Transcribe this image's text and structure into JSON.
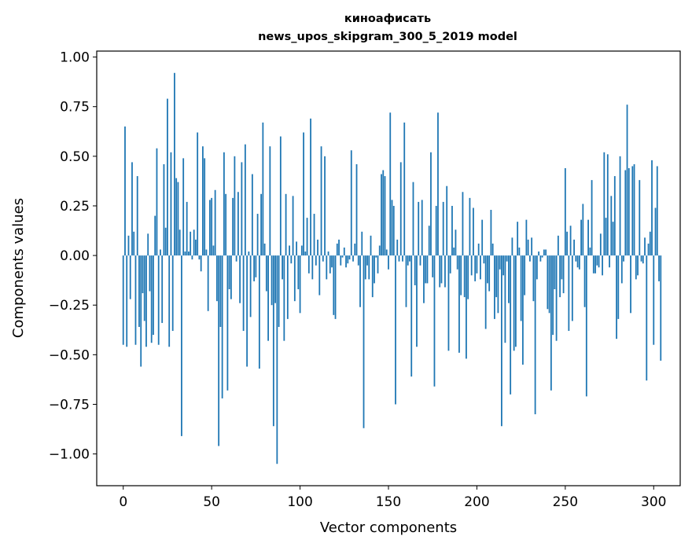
{
  "chart_data": {
    "type": "bar",
    "title_line1": "киноафисать",
    "title_line2": "news_upos_skipgram_300_5_2019 model",
    "xlabel": "Vector components",
    "ylabel": "Components values",
    "xlim": [
      -15,
      315
    ],
    "ylim": [
      -1.16,
      1.03
    ],
    "xticks": [
      0,
      50,
      100,
      150,
      200,
      250,
      300
    ],
    "yticks": [
      1.0,
      0.75,
      0.5,
      0.25,
      0.0,
      -0.25,
      -0.5,
      -0.75,
      -1.0
    ],
    "ytick_labels": [
      "1.00",
      "0.75",
      "0.50",
      "0.25",
      "0.00",
      "−0.25",
      "−0.50",
      "−0.75",
      "−1.00"
    ],
    "bar_color": "#1f77b4",
    "grid": false,
    "values": [
      -0.45,
      0.65,
      -0.46,
      0.1,
      -0.22,
      0.47,
      0.12,
      -0.45,
      0.4,
      -0.36,
      -0.56,
      -0.19,
      -0.33,
      -0.46,
      0.11,
      -0.18,
      -0.44,
      -0.4,
      0.2,
      0.54,
      -0.45,
      0.03,
      -0.34,
      0.46,
      0.14,
      0.79,
      -0.46,
      0.52,
      -0.38,
      0.92,
      0.39,
      0.37,
      0.13,
      -0.91,
      0.49,
      0.02,
      0.27,
      0.02,
      0.12,
      -0.02,
      0.13,
      0.08,
      0.62,
      -0.02,
      -0.08,
      0.55,
      0.49,
      0.03,
      -0.28,
      0.28,
      0.29,
      0.05,
      0.33,
      -0.23,
      -0.96,
      -0.36,
      -0.72,
      0.52,
      0.31,
      -0.68,
      -0.17,
      -0.22,
      0.29,
      0.5,
      -0.03,
      0.32,
      -0.24,
      0.47,
      -0.38,
      0.56,
      -0.56,
      0.02,
      -0.31,
      0.41,
      -0.13,
      -0.11,
      0.21,
      -0.57,
      0.31,
      0.67,
      0.06,
      -0.18,
      -0.43,
      0.55,
      -0.25,
      -0.86,
      -0.24,
      -1.05,
      -0.36,
      0.6,
      -0.12,
      -0.43,
      0.31,
      -0.32,
      0.05,
      -0.04,
      0.3,
      -0.23,
      0.07,
      -0.17,
      -0.29,
      0.05,
      0.62,
      0.02,
      0.19,
      -0.09,
      0.69,
      -0.12,
      0.21,
      -0.05,
      0.08,
      -0.2,
      0.55,
      -0.03,
      0.5,
      -0.12,
      0.02,
      -0.09,
      -0.06,
      -0.3,
      -0.32,
      0.06,
      0.08,
      -0.05,
      -0.01,
      0.04,
      -0.06,
      -0.04,
      -0.02,
      0.53,
      -0.03,
      0.06,
      0.46,
      -0.05,
      -0.26,
      0.12,
      -0.87,
      -0.12,
      -0.05,
      -0.12,
      0.1,
      -0.21,
      -0.14,
      -0.01,
      -0.09,
      0.05,
      0.41,
      0.43,
      0.4,
      0.03,
      -0.07,
      0.72,
      0.28,
      0.25,
      -0.75,
      0.08,
      -0.03,
      0.47,
      -0.03,
      0.67,
      -0.26,
      -0.05,
      -0.03,
      -0.61,
      0.37,
      -0.15,
      -0.46,
      0.27,
      -0.05,
      0.28,
      -0.24,
      -0.14,
      -0.14,
      0.15,
      0.52,
      -0.11,
      -0.66,
      0.25,
      0.72,
      -0.16,
      -0.14,
      0.27,
      -0.16,
      0.35,
      -0.48,
      -0.09,
      0.25,
      0.04,
      0.13,
      -0.07,
      -0.49,
      -0.2,
      0.32,
      -0.21,
      -0.52,
      -0.22,
      0.29,
      -0.1,
      0.24,
      -0.13,
      -0.09,
      0.06,
      -0.12,
      0.18,
      -0.04,
      -0.37,
      -0.14,
      -0.18,
      0.23,
      0.06,
      -0.32,
      -0.21,
      -0.29,
      -0.07,
      -0.86,
      -0.1,
      -0.44,
      -0.03,
      -0.24,
      -0.7,
      0.09,
      -0.48,
      -0.46,
      0.17,
      0.04,
      -0.33,
      -0.55,
      -0.2,
      0.18,
      0.08,
      -0.03,
      0.09,
      -0.23,
      -0.8,
      -0.12,
      0.02,
      -0.03,
      -0.01,
      0.03,
      0.03,
      -0.27,
      -0.29,
      -0.68,
      -0.4,
      -0.17,
      -0.43,
      0.1,
      -0.21,
      -0.12,
      -0.19,
      0.44,
      0.12,
      -0.38,
      0.15,
      -0.33,
      0.08,
      -0.03,
      -0.06,
      -0.07,
      0.18,
      0.26,
      -0.26,
      -0.71,
      0.18,
      0.04,
      0.38,
      -0.09,
      -0.09,
      -0.05,
      -0.06,
      0.11,
      -0.1,
      0.52,
      0.19,
      0.51,
      -0.06,
      0.3,
      0.17,
      0.4,
      -0.42,
      -0.32,
      0.5,
      -0.14,
      -0.03,
      0.43,
      0.76,
      0.44,
      -0.29,
      0.45,
      0.46,
      -0.12,
      -0.1,
      0.38,
      -0.03,
      -0.04,
      0.09,
      -0.63,
      0.06,
      0.12,
      0.48,
      -0.45,
      0.24,
      0.45,
      -0.13,
      -0.53
    ]
  }
}
